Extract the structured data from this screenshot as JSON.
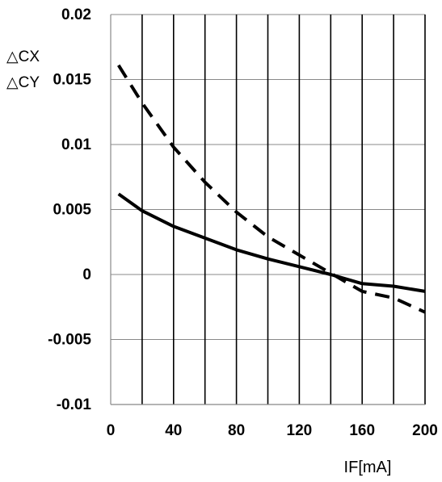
{
  "chart_data": {
    "type": "line",
    "title": "",
    "xlabel": "IF[mA]",
    "ylabel_lines": [
      "△CX",
      "△CY"
    ],
    "xlim": [
      0,
      200
    ],
    "ylim": [
      -0.01,
      0.02
    ],
    "x_ticks": [
      0,
      40,
      80,
      120,
      160,
      200
    ],
    "x_tick_labels": [
      "0",
      "40",
      "80",
      "120",
      "160",
      "200"
    ],
    "y_ticks": [
      0.02,
      0.015,
      0.01,
      0.005,
      0,
      -0.005,
      -0.01
    ],
    "y_tick_labels": [
      "0.02",
      "0.015",
      "0.01",
      "0.005",
      "0",
      "-0.005",
      "-0.01"
    ],
    "grid": {
      "horizontal_at": [
        0.02,
        0.015,
        0.01,
        0.005,
        0,
        -0.005,
        -0.01
      ],
      "vertical_at": [
        20,
        40,
        60,
        80,
        100,
        120,
        140,
        160,
        180,
        200
      ]
    },
    "legend": "none",
    "series": [
      {
        "style": "solid",
        "x": [
          5,
          20,
          40,
          60,
          80,
          100,
          120,
          140,
          160,
          180,
          200
        ],
        "y": [
          0.0062,
          0.0049,
          0.0037,
          0.0028,
          0.0019,
          0.0012,
          0.0006,
          0.0,
          -0.0007,
          -0.0009,
          -0.0013
        ]
      },
      {
        "style": "dashed",
        "x": [
          5,
          20,
          40,
          60,
          80,
          100,
          120,
          140,
          160,
          180,
          200
        ],
        "y": [
          0.0161,
          0.0132,
          0.0098,
          0.0071,
          0.0048,
          0.0029,
          0.0015,
          0.0001,
          -0.0013,
          -0.0018,
          -0.0029
        ]
      }
    ]
  }
}
